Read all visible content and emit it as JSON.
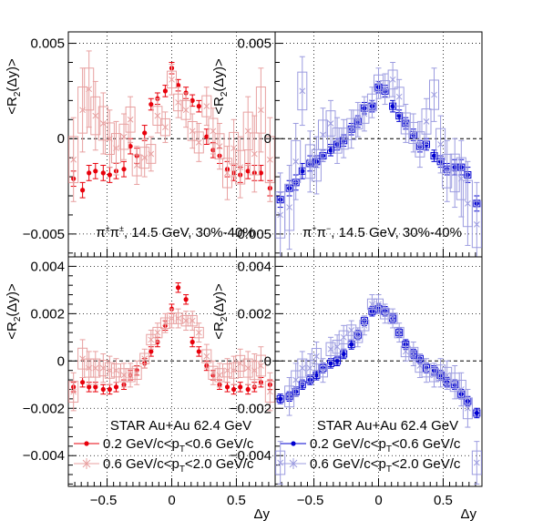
{
  "chart_data": [
    {
      "type": "scatter",
      "panel": "top-left",
      "ylabel": "<R2(Δy)>",
      "xlabel": "",
      "xlim": [
        -0.8,
        0.8
      ],
      "ylim": [
        -0.0062,
        0.0056
      ],
      "xticks": [
        "−0.5",
        "0",
        "0.5"
      ],
      "yticks": [
        {
          "v": -0.005,
          "t": "−0.005"
        },
        {
          "v": 0,
          "t": "0"
        },
        {
          "v": 0.005,
          "t": "0.005"
        }
      ],
      "annotation": "π±π±, 14.5 GeV, 30%-40%",
      "grid": true,
      "color_low": "#e8000b",
      "color_high": "#e8a0a0",
      "x": [
        -0.76,
        -0.69,
        -0.64,
        -0.59,
        -0.53,
        -0.48,
        -0.43,
        -0.37,
        -0.32,
        -0.27,
        -0.21,
        -0.16,
        -0.11,
        -0.05,
        0.0,
        0.05,
        0.11,
        0.16,
        0.21,
        0.27,
        0.32,
        0.37,
        0.43,
        0.48,
        0.53,
        0.59,
        0.64,
        0.69,
        0.76
      ],
      "series": [
        {
          "name": "0.2 GeV/c<pT<0.6 GeV/c",
          "marker": "dot",
          "values": [
            -0.0021,
            -0.0027,
            -0.0018,
            -0.0017,
            -0.0018,
            -0.0019,
            -0.0017,
            -0.0016,
            -0.0004,
            -0.0009,
            0.0003,
            0.0018,
            0.0021,
            0.0025,
            0.0037,
            0.0028,
            0.0024,
            0.002,
            0.0017,
            0.0001,
            -0.0006,
            -0.0009,
            -0.0016,
            -0.0018,
            -0.0019,
            -0.0017,
            -0.0018,
            -0.0018,
            -0.0026
          ],
          "err": [
            0.0004,
            0.0004,
            0.0004,
            0.0004,
            0.0004,
            0.0004,
            0.0004,
            0.0004,
            0.0004,
            0.0004,
            0.0004,
            0.0003,
            0.0003,
            0.0003,
            0.0003,
            0.0003,
            0.0003,
            0.0003,
            0.0003,
            0.0004,
            0.0004,
            0.0004,
            0.0004,
            0.0004,
            0.0004,
            0.0004,
            0.0004,
            0.0004,
            0.0004
          ]
        },
        {
          "name": "0.6 GeV/c<pT<2.0 GeV/c",
          "marker": "box",
          "values": [
            -0.0011,
            0.0015,
            0.0026,
            0.0012,
            0.0008,
            0.0,
            -0.0005,
            0.0001,
            0.001,
            -0.0014,
            -0.001,
            -0.0008,
            0.0012,
            0.0006,
            0.0031,
            0.0019,
            0.0015,
            0.0004,
            -0.0002,
            0.0017,
            0.0004,
            -0.0004,
            -0.0018,
            -0.0005,
            -0.0015,
            0.0004,
            -0.0008,
            0.0015,
            -0.0011
          ],
          "err": [
            0.0022,
            0.0022,
            0.002,
            0.0018,
            0.0016,
            0.0015,
            0.0014,
            0.0012,
            0.0012,
            0.001,
            0.001,
            0.0009,
            0.0009,
            0.0008,
            0.0008,
            0.0008,
            0.0009,
            0.0009,
            0.001,
            0.001,
            0.0012,
            0.0012,
            0.0014,
            0.0015,
            0.0016,
            0.0018,
            0.002,
            0.0022,
            0.0022
          ]
        }
      ]
    },
    {
      "type": "scatter",
      "panel": "top-right",
      "ylabel": "<R2(Δy)>",
      "xlabel": "",
      "xlim": [
        -0.8,
        0.8
      ],
      "ylim": [
        -0.0062,
        0.0056
      ],
      "xticks": [
        "−0.5",
        "0",
        "0.5"
      ],
      "yticks": [
        {
          "v": -0.005,
          "t": "−0.005"
        },
        {
          "v": 0,
          "t": "0"
        },
        {
          "v": 0.005,
          "t": "0.005"
        }
      ],
      "annotation": "π+π−, 14.5 GeV, 30%-40%",
      "grid": true,
      "color_low": "#0000d0",
      "color_high": "#9c9ce0",
      "x": [
        -0.76,
        -0.69,
        -0.64,
        -0.59,
        -0.53,
        -0.48,
        -0.43,
        -0.37,
        -0.32,
        -0.27,
        -0.21,
        -0.16,
        -0.11,
        -0.05,
        0.0,
        0.05,
        0.11,
        0.16,
        0.21,
        0.27,
        0.32,
        0.37,
        0.43,
        0.48,
        0.53,
        0.59,
        0.64,
        0.69,
        0.76
      ],
      "series": [
        {
          "name": "0.2 GeV/c<pT<0.6 GeV/c",
          "marker": "dot",
          "values": [
            -0.0032,
            -0.0026,
            -0.0023,
            -0.0017,
            -0.0013,
            -0.0012,
            -0.0009,
            -0.0006,
            -0.0003,
            -0.0001,
            0.0005,
            0.0009,
            0.0016,
            0.0017,
            0.0027,
            0.0025,
            0.0017,
            0.0012,
            0.0008,
            0.0002,
            -0.0004,
            -0.0003,
            -0.0009,
            -0.0012,
            -0.0016,
            -0.0015,
            -0.0015,
            -0.0019,
            -0.0034
          ],
          "err": [
            0.0004,
            0.0004,
            0.0004,
            0.0004,
            0.0004,
            0.0003,
            0.0003,
            0.0003,
            0.0003,
            0.0003,
            0.0003,
            0.0003,
            0.0003,
            0.0003,
            0.0003,
            0.0003,
            0.0003,
            0.0003,
            0.0003,
            0.0003,
            0.0003,
            0.0003,
            0.0003,
            0.0003,
            0.0003,
            0.0004,
            0.0004,
            0.0004,
            0.0004
          ]
        },
        {
          "name": "0.6 GeV/c<pT<2.0 GeV/c",
          "marker": "box",
          "values": [
            -0.004,
            -0.0036,
            -0.0012,
            0.0025,
            -0.0012,
            -0.0014,
            0.0002,
            0.0008,
            -0.0001,
            0.0,
            0.0005,
            0.001,
            0.0013,
            0.0019,
            0.0029,
            0.0026,
            0.0031,
            0.0022,
            0.0008,
            0.0003,
            -0.0003,
            0.0009,
            0.0023,
            -0.0003,
            -0.0017,
            -0.0018,
            -0.0021,
            -0.0034,
            -0.0045
          ],
          "err": [
            0.0022,
            0.0022,
            0.002,
            0.0018,
            0.0016,
            0.0015,
            0.0014,
            0.0012,
            0.0012,
            0.001,
            0.001,
            0.0009,
            0.0009,
            0.0008,
            0.0008,
            0.0008,
            0.0009,
            0.0009,
            0.001,
            0.001,
            0.0012,
            0.0012,
            0.0014,
            0.0015,
            0.0016,
            0.0018,
            0.002,
            0.0022,
            0.0022
          ]
        }
      ]
    },
    {
      "type": "scatter",
      "panel": "bottom-left",
      "ylabel": "<R2(Δy)>",
      "xlabel": "Δy",
      "xlim": [
        -0.8,
        0.8
      ],
      "ylim": [
        -0.0053,
        0.0044
      ],
      "xticks": [
        "−0.5",
        "0",
        "0.5"
      ],
      "yticks": [
        {
          "v": -0.004,
          "t": "−0.004"
        },
        {
          "v": -0.002,
          "t": "−0.002"
        },
        {
          "v": 0,
          "t": "0"
        },
        {
          "v": 0.002,
          "t": "0.002"
        },
        {
          "v": 0.004,
          "t": "0.004"
        }
      ],
      "annotation": "STAR Au+Au 62.4 GeV",
      "legend": [
        "0.2 GeV/c<pT<0.6 GeV/c",
        "0.6 GeV/c<pT<2.0 GeV/c"
      ],
      "legend_position": "bottom-center",
      "grid": true,
      "color_low": "#e8000b",
      "color_high": "#e8a0a0",
      "x": [
        -0.76,
        -0.69,
        -0.64,
        -0.59,
        -0.53,
        -0.48,
        -0.43,
        -0.37,
        -0.32,
        -0.27,
        -0.21,
        -0.16,
        -0.11,
        -0.05,
        0.0,
        0.05,
        0.11,
        0.16,
        0.21,
        0.27,
        0.32,
        0.37,
        0.43,
        0.48,
        0.53,
        0.59,
        0.64,
        0.69,
        0.76
      ],
      "series": [
        {
          "name": "0.2 GeV/c<pT<0.6 GeV/c",
          "marker": "dot",
          "values": [
            -0.0011,
            -0.0009,
            -0.0011,
            -0.0011,
            -0.0012,
            -0.0012,
            -0.0011,
            -0.001,
            -0.0006,
            -0.0004,
            -0.0001,
            0.0004,
            0.0008,
            0.0015,
            0.0022,
            0.0031,
            0.0026,
            0.0008,
            0.0004,
            -0.0002,
            -0.0006,
            -0.001,
            -0.0011,
            -0.0012,
            -0.0011,
            -0.0012,
            -0.0011,
            -0.0009,
            -0.001
          ],
          "err": [
            0.0002,
            0.0002,
            0.0002,
            0.0002,
            0.0002,
            0.0002,
            0.0002,
            0.0002,
            0.0002,
            0.0002,
            0.0002,
            0.0002,
            0.0002,
            0.0002,
            0.0002,
            0.0002,
            0.0002,
            0.0002,
            0.0002,
            0.0002,
            0.0002,
            0.0002,
            0.0002,
            0.0002,
            0.0002,
            0.0002,
            0.0002,
            0.0002,
            0.0002
          ]
        },
        {
          "name": "0.6 GeV/c<pT<2.0 GeV/c",
          "marker": "box",
          "values": [
            -0.0013,
            0.0001,
            -0.0003,
            -0.0003,
            -0.0003,
            -0.0004,
            -0.0004,
            -0.0006,
            -0.0006,
            -0.0005,
            0.0001,
            0.0009,
            0.0012,
            0.0016,
            0.0018,
            0.0018,
            0.0017,
            0.0017,
            0.0012,
            0.0002,
            -0.0005,
            -0.0006,
            -0.0004,
            -0.0004,
            -0.0001,
            -0.0003,
            -0.0004,
            -0.0002,
            -0.0013
          ],
          "err": [
            0.0008,
            0.0008,
            0.0007,
            0.0007,
            0.0006,
            0.0006,
            0.0005,
            0.0005,
            0.0005,
            0.0005,
            0.0004,
            0.0004,
            0.0004,
            0.0004,
            0.0004,
            0.0004,
            0.0004,
            0.0004,
            0.0004,
            0.0005,
            0.0005,
            0.0005,
            0.0005,
            0.0006,
            0.0006,
            0.0007,
            0.0007,
            0.0008,
            0.0008
          ]
        }
      ]
    },
    {
      "type": "scatter",
      "panel": "bottom-right",
      "ylabel": "<R2(Δy)>",
      "xlabel": "Δy",
      "xlim": [
        -0.8,
        0.8
      ],
      "ylim": [
        -0.0053,
        0.0044
      ],
      "xticks": [
        "−0.5",
        "0",
        "0.5"
      ],
      "yticks": [
        {
          "v": -0.004,
          "t": "−0.004"
        },
        {
          "v": -0.002,
          "t": "−0.002"
        },
        {
          "v": 0,
          "t": "0"
        },
        {
          "v": 0.002,
          "t": "0.002"
        },
        {
          "v": 0.004,
          "t": "0.004"
        }
      ],
      "annotation": "STAR Au+Au 62.4 GeV",
      "legend": [
        "0.2 GeV/c<pT<0.6 GeV/c",
        "0.6 GeV/c<pT<2.0 GeV/c"
      ],
      "legend_position": "bottom-center",
      "grid": true,
      "color_low": "#0000d0",
      "color_high": "#9c9ce0",
      "x": [
        -0.76,
        -0.69,
        -0.64,
        -0.59,
        -0.53,
        -0.48,
        -0.43,
        -0.37,
        -0.32,
        -0.27,
        -0.21,
        -0.16,
        -0.11,
        -0.05,
        0.0,
        0.05,
        0.11,
        0.16,
        0.21,
        0.27,
        0.32,
        0.37,
        0.43,
        0.48,
        0.53,
        0.59,
        0.64,
        0.69,
        0.76
      ],
      "series": [
        {
          "name": "0.2 GeV/c<pT<0.6 GeV/c",
          "marker": "dot",
          "values": [
            -0.0016,
            -0.0015,
            -0.0013,
            -0.001,
            -0.0008,
            -0.0006,
            -0.0003,
            -0.0001,
            0.0,
            0.0003,
            0.0007,
            0.0011,
            0.0017,
            0.0021,
            0.0022,
            0.0021,
            0.0018,
            0.0012,
            0.0007,
            0.0003,
            0.0001,
            -0.0003,
            -0.0004,
            -0.0006,
            -0.0009,
            -0.001,
            -0.0014,
            -0.0017,
            -0.0022
          ],
          "err": [
            0.0002,
            0.0002,
            0.0002,
            0.0002,
            0.0002,
            0.0002,
            0.0002,
            0.0002,
            0.0002,
            0.0002,
            0.0002,
            0.0002,
            0.0002,
            0.0002,
            0.0002,
            0.0002,
            0.0002,
            0.0002,
            0.0002,
            0.0002,
            0.0002,
            0.0002,
            0.0002,
            0.0002,
            0.0002,
            0.0002,
            0.0002,
            0.0002,
            0.0002
          ]
        },
        {
          "name": "0.6 GeV/c<pT<2.0 GeV/c",
          "marker": "box",
          "values": [
            -0.0043,
            -0.0015,
            -0.0008,
            -0.0003,
            -0.0003,
            0.0002,
            -0.0004,
            0.0005,
            0.0006,
            0.001,
            0.0013,
            0.001,
            0.0015,
            0.0024,
            0.0024,
            0.002,
            0.0018,
            0.0012,
            0.0004,
            0.0003,
            -0.0002,
            -0.0004,
            -0.0006,
            -0.0005,
            -0.0006,
            -0.0009,
            -0.0012,
            -0.002,
            -0.0043
          ],
          "err": [
            0.0009,
            0.0008,
            0.0007,
            0.0007,
            0.0006,
            0.0006,
            0.0005,
            0.0005,
            0.0005,
            0.0005,
            0.0004,
            0.0004,
            0.0004,
            0.0004,
            0.0004,
            0.0004,
            0.0004,
            0.0004,
            0.0004,
            0.0005,
            0.0005,
            0.0005,
            0.0005,
            0.0006,
            0.0006,
            0.0007,
            0.0007,
            0.0008,
            0.0009
          ]
        }
      ]
    }
  ]
}
